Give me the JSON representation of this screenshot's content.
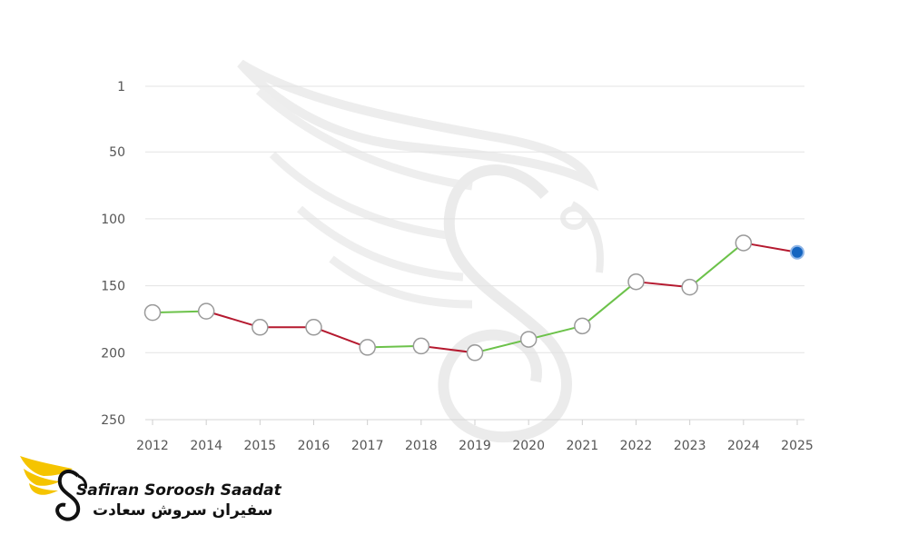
{
  "chart_data": {
    "type": "line",
    "title": "",
    "xlabel": "",
    "ylabel": "",
    "y_inverted": true,
    "ylim": [
      1,
      250
    ],
    "yticks": [
      "1",
      "50",
      "100",
      "150",
      "200",
      "250"
    ],
    "grid": "horizontal",
    "categories": [
      "2012",
      "2014",
      "2015",
      "2016",
      "2017",
      "2018",
      "2019",
      "2020",
      "2021",
      "2022",
      "2023",
      "2024",
      "2025"
    ],
    "values": [
      170,
      169,
      181,
      181,
      196,
      195,
      200,
      190,
      180,
      147,
      151,
      118,
      125
    ],
    "colors": {
      "up": "#6cc24a",
      "down": "#b5192f",
      "current": "#1565c0",
      "grid": "#e3e3e3",
      "marker_stroke": "#9a9a9a"
    }
  },
  "watermark": {
    "icon": "swan-wing-logo-icon"
  },
  "logo": {
    "icon": "swan-wing-logo-icon",
    "name_en": "Safiran Soroosh Saadat",
    "name_fa": "سفیران سروش سعادت",
    "colors": {
      "wing": "#f5c400",
      "swan": "#111111"
    }
  }
}
